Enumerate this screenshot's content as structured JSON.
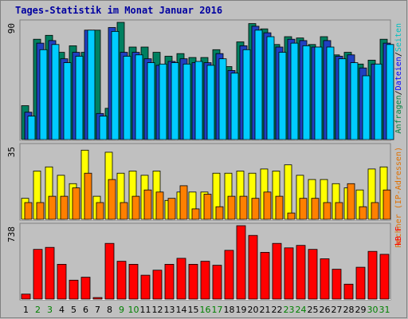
{
  "chart_data": {
    "type": "bar",
    "title": "Tages-Statistik im Monat Januar 2016",
    "categories": [
      "1",
      "2",
      "3",
      "4",
      "5",
      "6",
      "7",
      "8",
      "9",
      "10",
      "11",
      "12",
      "13",
      "14",
      "15",
      "16",
      "17",
      "18",
      "19",
      "20",
      "21",
      "22",
      "23",
      "24",
      "25",
      "26",
      "27",
      "28",
      "29",
      "30",
      "31"
    ],
    "weekend_days": [
      "2",
      "3",
      "9",
      "10",
      "16",
      "17",
      "23",
      "24",
      "30",
      "31"
    ],
    "day_label_colors": {
      "weekday": "#000000",
      "weekend": "#008000"
    },
    "panels": [
      {
        "name": "top",
        "max_label": "90",
        "ylim": [
          0,
          90
        ],
        "legend_parts": [
          {
            "text": "Anfragen",
            "color": "#008040"
          },
          {
            "text": "/",
            "color": "#000000"
          },
          {
            "text": "Dateien",
            "color": "#0000ff"
          },
          {
            "text": "/",
            "color": "#000000"
          },
          {
            "text": "Seiten",
            "color": "#00c0c0"
          }
        ],
        "series": [
          {
            "name": "Anfragen",
            "color": "#008060",
            "values": [
              26,
              77,
              80,
              67,
              72,
              67,
              84,
              24,
              90,
              71,
              71,
              67,
              64,
              66,
              63,
              63,
              69,
              56,
              75,
              89,
              85,
              73,
              79,
              78,
              73,
              79,
              65,
              67,
              58,
              61,
              77
            ]
          },
          {
            "name": "Dateien",
            "color": "#2040c0",
            "values": [
              21,
              74,
              76,
              62,
              67,
              84,
              20,
              86,
              67,
              67,
              62,
              57,
              60,
              62,
              59,
              59,
              66,
              53,
              72,
              87,
              82,
              71,
              77,
              76,
              71,
              76,
              64,
              65,
              55,
              58,
              74
            ]
          },
          {
            "name": "Seiten",
            "color": "#00ccff",
            "values": [
              18,
              69,
              73,
              59,
              64,
              84,
              18,
              83,
              64,
              65,
              59,
              58,
              59,
              58,
              60,
              57,
              62,
              51,
              69,
              84,
              79,
              67,
              74,
              72,
              71,
              71,
              62,
              59,
              49,
              58,
              73
            ]
          }
        ]
      },
      {
        "name": "middle",
        "max_label": "35",
        "ylim": [
          0,
          35
        ],
        "legend_parts": [
          {
            "text": "Rechner (IP-Adressen)",
            "color": "#e07000"
          }
        ],
        "series": [
          {
            "name": "Rechner (IP-Adressen)",
            "color": "#ffff00",
            "values": [
              10,
              23,
              25,
              21,
              17,
              33,
              11,
              32,
              22,
              23,
              21,
              23,
              9,
              13,
              13,
              13,
              22,
              22,
              23,
              22,
              24,
              23,
              26,
              21,
              19,
              19,
              17,
              15,
              14,
              24,
              25
            ]
          },
          {
            "name": "Rechner (IP-Adressen)",
            "color": "#ff8000",
            "values": [
              8,
              8,
              11,
              11,
              15,
              22,
              8,
              19,
              8,
              11,
              14,
              13,
              10,
              16,
              5,
              12,
              6,
              11,
              11,
              10,
              13,
              11,
              3,
              10,
              10,
              8,
              8,
              17,
              6,
              8,
              14
            ]
          }
        ]
      },
      {
        "name": "bottom",
        "max_label": "738",
        "ylim": [
          0,
          738
        ],
        "legend_parts": [
          {
            "text": "kB F",
            "color": "#ff0000"
          }
        ],
        "series": [
          {
            "name": "kB F",
            "color": "#ff0000",
            "values": [
              50,
              500,
              520,
              350,
              190,
              220,
              15,
              560,
              380,
              350,
              240,
              290,
              350,
              410,
              350,
              380,
              340,
              490,
              738,
              640,
              470,
              560,
              515,
              540,
              500,
              405,
              300,
              150,
              320,
              480,
              450
            ]
          }
        ]
      }
    ]
  }
}
